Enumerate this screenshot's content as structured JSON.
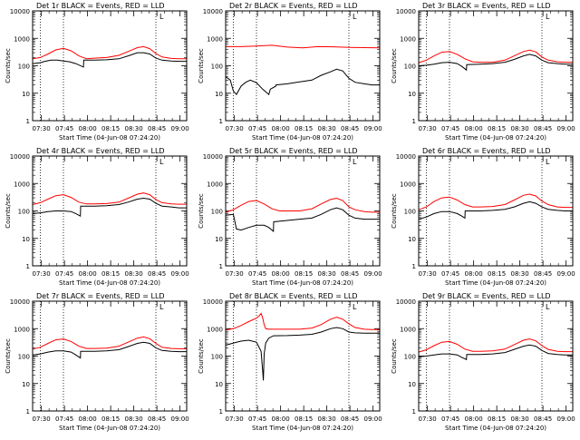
{
  "figure": {
    "background": "#ffffff",
    "events_color": "#000000",
    "lld_color": "#ff0000",
    "ylabel": "Counts/sec",
    "xlabel": "Start Time (04-Jun-08 07:24:20)",
    "x_ticks": [
      "07:30",
      "07:45",
      "08:00",
      "08:15",
      "08:30",
      "08:45",
      "09:00"
    ],
    "y_ticks": [
      "1",
      "10",
      "100",
      "1000",
      "10000"
    ],
    "corner_mark": "L"
  },
  "chart_data": [
    {
      "type": "line",
      "title": "Det 1r BLACK = Events, RED = LLD",
      "x_unit": "minutes from 07:24:20",
      "xlim": [
        0,
        100
      ],
      "ylim": [
        1,
        10000
      ],
      "y_scale": "log",
      "vlines": [
        5,
        20,
        80
      ],
      "series": [
        {
          "name": "Events",
          "color": "#000000",
          "x": [
            0,
            5,
            8,
            12,
            16,
            20,
            24,
            28,
            33,
            33.2,
            40,
            48,
            56,
            62,
            68,
            72,
            76,
            80,
            84,
            90,
            95,
            100
          ],
          "y": [
            120,
            130,
            145,
            160,
            160,
            150,
            140,
            120,
            90,
            160,
            160,
            165,
            180,
            230,
            300,
            300,
            270,
            190,
            160,
            150,
            145,
            145
          ]
        },
        {
          "name": "LLD",
          "color": "#ff0000",
          "x": [
            0,
            5,
            10,
            15,
            20,
            25,
            30,
            35,
            40,
            48,
            56,
            62,
            68,
            72,
            76,
            80,
            84,
            90,
            95,
            100
          ],
          "y": [
            180,
            200,
            270,
            380,
            430,
            350,
            230,
            180,
            190,
            200,
            240,
            330,
            460,
            500,
            420,
            280,
            210,
            185,
            180,
            180
          ]
        }
      ]
    },
    {
      "type": "line",
      "title": "Det 2r BLACK = Events, RED = LLD",
      "x_unit": "minutes from 07:24:20",
      "xlim": [
        0,
        100
      ],
      "ylim": [
        1,
        10000
      ],
      "y_scale": "log",
      "vlines": [
        5,
        20,
        80
      ],
      "series": [
        {
          "name": "Events",
          "color": "#000000",
          "x": [
            0,
            3,
            5,
            7,
            10,
            13,
            16,
            20,
            24,
            28,
            29,
            32.5,
            32.7,
            40,
            48,
            56,
            62,
            68,
            72,
            76,
            80,
            84,
            90,
            95,
            100
          ],
          "y": [
            40,
            30,
            12,
            9,
            18,
            25,
            30,
            24,
            14,
            9,
            14,
            18,
            20,
            22,
            26,
            30,
            45,
            60,
            75,
            65,
            35,
            25,
            22,
            20,
            20
          ]
        },
        {
          "name": "LLD",
          "color": "#ff0000",
          "x": [
            0,
            10,
            20,
            30,
            40,
            50,
            60,
            70,
            80,
            90,
            100
          ],
          "y": [
            500,
            500,
            520,
            560,
            480,
            450,
            500,
            490,
            470,
            460,
            450
          ]
        }
      ]
    },
    {
      "type": "line",
      "title": "Det 3r BLACK = Events, RED = LLD",
      "x_unit": "minutes from 07:24:20",
      "xlim": [
        0,
        100
      ],
      "ylim": [
        1,
        10000
      ],
      "y_scale": "log",
      "vlines": [
        5,
        20,
        80
      ],
      "series": [
        {
          "name": "Events",
          "color": "#000000",
          "x": [
            0,
            5,
            10,
            15,
            20,
            25,
            28,
            31,
            31.2,
            40,
            48,
            56,
            62,
            68,
            72,
            76,
            80,
            84,
            90,
            95,
            100
          ],
          "y": [
            100,
            105,
            115,
            130,
            135,
            120,
            95,
            70,
            110,
            115,
            120,
            135,
            170,
            230,
            260,
            230,
            160,
            130,
            120,
            115,
            115
          ]
        },
        {
          "name": "LLD",
          "color": "#ff0000",
          "x": [
            0,
            5,
            10,
            15,
            20,
            25,
            30,
            35,
            40,
            48,
            56,
            62,
            68,
            72,
            76,
            80,
            84,
            90,
            95,
            100
          ],
          "y": [
            130,
            160,
            230,
            310,
            330,
            260,
            180,
            140,
            135,
            135,
            160,
            230,
            330,
            370,
            320,
            210,
            160,
            140,
            135,
            135
          ]
        }
      ]
    },
    {
      "type": "line",
      "title": "Det 4r BLACK = Events, RED = LLD",
      "x_unit": "minutes from 07:24:20",
      "xlim": [
        0,
        100
      ],
      "ylim": [
        1,
        10000
      ],
      "y_scale": "log",
      "vlines": [
        5,
        20,
        80
      ],
      "series": [
        {
          "name": "Events",
          "color": "#000000",
          "x": [
            0,
            5,
            10,
            15,
            20,
            25,
            28,
            31,
            31.2,
            40,
            48,
            56,
            62,
            68,
            72,
            76,
            80,
            84,
            90,
            95,
            100
          ],
          "y": [
            80,
            85,
            95,
            100,
            100,
            95,
            80,
            65,
            150,
            150,
            155,
            170,
            210,
            270,
            290,
            270,
            190,
            150,
            140,
            130,
            130
          ]
        },
        {
          "name": "LLD",
          "color": "#ff0000",
          "x": [
            0,
            5,
            10,
            15,
            20,
            25,
            30,
            35,
            40,
            48,
            56,
            62,
            68,
            72,
            76,
            80,
            84,
            90,
            95,
            100
          ],
          "y": [
            170,
            200,
            270,
            360,
            390,
            310,
            210,
            180,
            180,
            185,
            210,
            290,
            410,
            450,
            390,
            260,
            200,
            180,
            175,
            175
          ]
        }
      ]
    },
    {
      "type": "line",
      "title": "Det 5r BLACK = Events, RED = LLD",
      "x_unit": "minutes from 07:24:20",
      "xlim": [
        0,
        100
      ],
      "ylim": [
        1,
        10000
      ],
      "y_scale": "log",
      "vlines": [
        5,
        20,
        80
      ],
      "series": [
        {
          "name": "Events",
          "color": "#000000",
          "x": [
            0,
            5,
            7,
            10,
            15,
            20,
            25,
            28,
            31,
            31.2,
            40,
            48,
            56,
            62,
            68,
            72,
            76,
            80,
            84,
            90,
            95,
            100
          ],
          "y": [
            70,
            75,
            22,
            20,
            25,
            30,
            30,
            25,
            18,
            40,
            45,
            50,
            55,
            75,
            110,
            130,
            110,
            70,
            55,
            50,
            50,
            50
          ]
        },
        {
          "name": "LLD",
          "color": "#ff0000",
          "x": [
            0,
            5,
            10,
            15,
            20,
            25,
            30,
            35,
            40,
            48,
            56,
            62,
            68,
            72,
            76,
            80,
            84,
            90,
            95,
            100
          ],
          "y": [
            90,
            110,
            160,
            220,
            240,
            180,
            120,
            100,
            100,
            100,
            120,
            180,
            260,
            290,
            240,
            140,
            110,
            95,
            90,
            90
          ]
        }
      ]
    },
    {
      "type": "line",
      "title": "Det 6r BLACK = Events, RED = LLD",
      "x_unit": "minutes from 07:24:20",
      "xlim": [
        0,
        100
      ],
      "ylim": [
        1,
        10000
      ],
      "y_scale": "log",
      "vlines": [
        5,
        20,
        80
      ],
      "series": [
        {
          "name": "Events",
          "color": "#000000",
          "x": [
            0,
            5,
            10,
            15,
            20,
            25,
            28,
            30,
            30.2,
            40,
            48,
            56,
            62,
            68,
            72,
            76,
            80,
            84,
            90,
            95,
            100
          ],
          "y": [
            50,
            60,
            80,
            95,
            95,
            80,
            65,
            55,
            100,
            100,
            105,
            115,
            140,
            190,
            215,
            190,
            140,
            115,
            105,
            100,
            100
          ]
        },
        {
          "name": "LLD",
          "color": "#ff0000",
          "x": [
            0,
            5,
            10,
            15,
            20,
            25,
            30,
            35,
            40,
            48,
            56,
            62,
            68,
            72,
            76,
            80,
            84,
            90,
            95,
            100
          ],
          "y": [
            110,
            140,
            220,
            300,
            320,
            250,
            170,
            140,
            140,
            145,
            170,
            250,
            370,
            410,
            350,
            230,
            170,
            140,
            135,
            135
          ]
        }
      ]
    },
    {
      "type": "line",
      "title": "Det 7r BLACK = Events, RED = LLD",
      "x_unit": "minutes from 07:24:20",
      "xlim": [
        0,
        100
      ],
      "ylim": [
        1,
        10000
      ],
      "y_scale": "log",
      "vlines": [
        5,
        20,
        80
      ],
      "series": [
        {
          "name": "Events",
          "color": "#000000",
          "x": [
            0,
            5,
            10,
            15,
            20,
            25,
            28,
            31,
            31.2,
            40,
            48,
            56,
            62,
            68,
            72,
            76,
            80,
            84,
            90,
            95,
            100
          ],
          "y": [
            110,
            120,
            140,
            155,
            155,
            140,
            110,
            85,
            150,
            150,
            155,
            170,
            220,
            290,
            320,
            290,
            200,
            160,
            150,
            145,
            145
          ]
        },
        {
          "name": "LLD",
          "color": "#ff0000",
          "x": [
            0,
            5,
            10,
            15,
            20,
            25,
            30,
            35,
            40,
            48,
            56,
            62,
            68,
            72,
            76,
            80,
            84,
            90,
            95,
            100
          ],
          "y": [
            180,
            210,
            290,
            390,
            420,
            340,
            230,
            190,
            190,
            195,
            230,
            320,
            450,
            500,
            430,
            290,
            210,
            190,
            185,
            185
          ]
        }
      ]
    },
    {
      "type": "line",
      "title": "Det 8r BLACK = Events, RED = LLD",
      "x_unit": "minutes from 07:24:20",
      "xlim": [
        0,
        100
      ],
      "ylim": [
        1,
        10000
      ],
      "y_scale": "log",
      "vlines": [
        5,
        20,
        80
      ],
      "series": [
        {
          "name": "Events",
          "color": "#000000",
          "x": [
            0,
            5,
            10,
            15,
            20,
            23,
            24,
            24.5,
            25,
            26,
            28,
            31,
            40,
            48,
            56,
            62,
            68,
            72,
            76,
            80,
            84,
            90,
            95,
            100
          ],
          "y": [
            250,
            300,
            350,
            380,
            320,
            150,
            30,
            13,
            120,
            300,
            450,
            550,
            560,
            580,
            620,
            750,
            1000,
            1100,
            1000,
            750,
            700,
            680,
            680,
            680
          ]
        },
        {
          "name": "LLD",
          "color": "#ff0000",
          "x": [
            0,
            5,
            10,
            15,
            20,
            22,
            23,
            24,
            25,
            26,
            28,
            31,
            40,
            48,
            56,
            62,
            68,
            72,
            76,
            80,
            84,
            90,
            95,
            100
          ],
          "y": [
            900,
            1000,
            1300,
            1800,
            2400,
            3000,
            3600,
            2500,
            1400,
            1000,
            950,
            950,
            950,
            950,
            1050,
            1400,
            2200,
            2600,
            2200,
            1500,
            1100,
            950,
            920,
            920
          ]
        }
      ]
    },
    {
      "type": "line",
      "title": "Det 9r BLACK = Events, RED = LLD",
      "x_unit": "minutes from 07:24:20",
      "xlim": [
        0,
        100
      ],
      "ylim": [
        1,
        10000
      ],
      "y_scale": "log",
      "vlines": [
        5,
        20,
        80
      ],
      "series": [
        {
          "name": "Events",
          "color": "#000000",
          "x": [
            0,
            5,
            10,
            15,
            20,
            25,
            28,
            31,
            31.2,
            40,
            48,
            56,
            62,
            68,
            72,
            76,
            80,
            84,
            90,
            95,
            100
          ],
          "y": [
            95,
            100,
            110,
            120,
            120,
            110,
            90,
            75,
            115,
            115,
            120,
            135,
            175,
            230,
            255,
            230,
            160,
            125,
            115,
            110,
            110
          ]
        },
        {
          "name": "LLD",
          "color": "#ff0000",
          "x": [
            0,
            5,
            10,
            15,
            20,
            25,
            30,
            35,
            40,
            48,
            56,
            62,
            68,
            72,
            76,
            80,
            84,
            90,
            95,
            100
          ],
          "y": [
            140,
            170,
            240,
            320,
            340,
            270,
            180,
            150,
            150,
            155,
            180,
            260,
            380,
            420,
            360,
            240,
            175,
            150,
            145,
            145
          ]
        }
      ]
    }
  ]
}
